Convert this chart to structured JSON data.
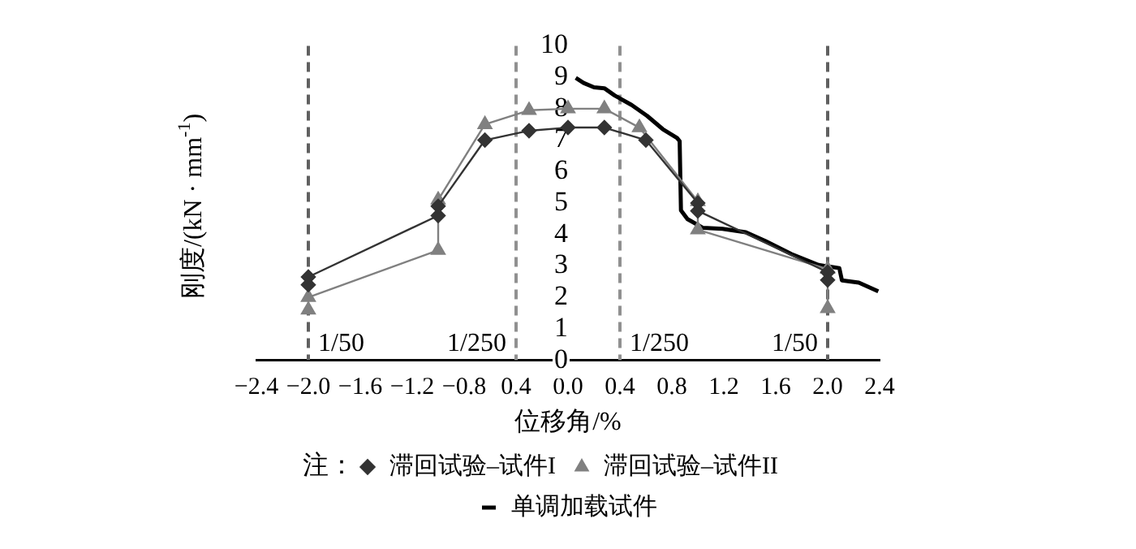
{
  "chart_data": {
    "type": "line",
    "xlabel": "位移角/%",
    "ylabel": "刚度/(kN · mm$^{-1}$)",
    "legend_title": "注：",
    "legend": "bottom",
    "grid": false,
    "xlim": [
      -2.4,
      2.4
    ],
    "xticks": [
      -2.4,
      {
        "value": -2.0,
        "label": "−2.0"
      },
      -1.6,
      -1.2,
      -0.8,
      {
        "value": -0.4,
        "label": "0.4"
      },
      {
        "value": 0.0,
        "label": "0.0"
      },
      0.4,
      0.8,
      1.2,
      1.6,
      {
        "value": 2.0,
        "label": "2.0"
      },
      2.4
    ],
    "annotations": [
      "1/50",
      "1/250",
      "1/250",
      "1/50"
    ],
    "ylim": [
      0,
      10
    ],
    "yticks": [
      0,
      1,
      2,
      3,
      4,
      5,
      6,
      7,
      8,
      9,
      10
    ],
    "ref_lines": [
      {
        "axis": "x",
        "value": -2.0,
        "color": "#606060",
        "line_style": "dashed"
      },
      {
        "axis": "x",
        "value": -0.4,
        "color": "#909090",
        "line_style": "dashed"
      },
      {
        "axis": "x",
        "value": 0.4,
        "color": "#909090",
        "line_style": "dashed"
      },
      {
        "axis": "x",
        "value": 2.0,
        "color": "#606060",
        "line_style": "dashed"
      }
    ],
    "series": [
      {
        "name": "滞回试验–试件I",
        "color": "#333333",
        "marker": "diamond",
        "x": [
          -2.0,
          -2.0,
          -1.0,
          -1.0,
          -0.64,
          -0.3,
          0.0,
          0.28,
          0.6,
          1.0,
          1.0,
          2.0,
          2.0
        ],
        "values": [
          2.4,
          2.65,
          4.6,
          4.9,
          7.0,
          7.3,
          7.4,
          7.4,
          7.0,
          5.0,
          4.75,
          2.8,
          2.55
        ]
      },
      {
        "name": "滞回试验–试件II",
        "color": "#808080",
        "marker": "triangle",
        "x": [
          -2.0,
          -2.0,
          -1.0,
          -1.0,
          -0.64,
          -0.3,
          0.0,
          0.28,
          0.55,
          1.0,
          1.0,
          2.0,
          2.0
        ],
        "values": [
          1.6,
          2.0,
          3.5,
          5.1,
          7.5,
          7.95,
          8.0,
          8.0,
          7.4,
          5.05,
          4.15,
          2.9,
          1.65
        ]
      },
      {
        "name": "单调加载试件",
        "color": "#000000",
        "marker": "none",
        "x": [
          0.06,
          0.12,
          0.2,
          0.28,
          0.36,
          0.49,
          0.61,
          0.73,
          0.84,
          0.86,
          0.87,
          0.92,
          1.04,
          1.19,
          1.37,
          1.52,
          1.72,
          1.93,
          2.09,
          2.11,
          2.24,
          2.39
        ],
        "values": [
          8.98,
          8.82,
          8.68,
          8.65,
          8.42,
          8.12,
          7.77,
          7.35,
          7.07,
          6.97,
          4.77,
          4.49,
          4.21,
          4.18,
          4.07,
          3.79,
          3.38,
          3.03,
          2.93,
          2.54,
          2.47,
          2.19
        ]
      }
    ]
  }
}
